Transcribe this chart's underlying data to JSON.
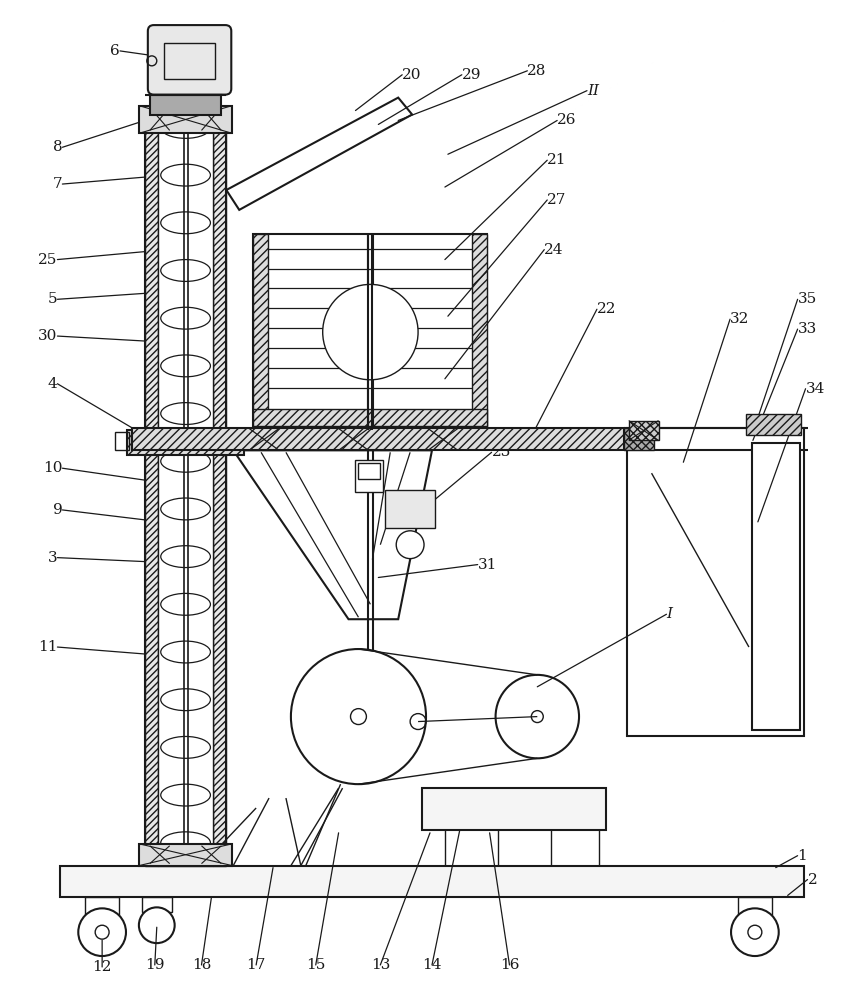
{
  "bg_color": "#ffffff",
  "line_color": "#1a1a1a",
  "fig_width": 8.6,
  "fig_height": 10.0
}
